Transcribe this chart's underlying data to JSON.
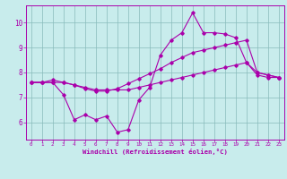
{
  "xlabel": "Windchill (Refroidissement éolien,°C)",
  "background_color": "#c8ecec",
  "line_color": "#aa00aa",
  "grid_color": "#aaccaa",
  "xlim": [
    -0.5,
    23.5
  ],
  "ylim": [
    5.3,
    10.7
  ],
  "yticks": [
    6,
    7,
    8,
    9,
    10
  ],
  "xticks": [
    0,
    1,
    2,
    3,
    4,
    5,
    6,
    7,
    8,
    9,
    10,
    11,
    12,
    13,
    14,
    15,
    16,
    17,
    18,
    19,
    20,
    21,
    22,
    23
  ],
  "line1_x": [
    0,
    1,
    2,
    3,
    4,
    5,
    6,
    7,
    8,
    9,
    10,
    11,
    12,
    13,
    14,
    15,
    16,
    17,
    18,
    19,
    20,
    21,
    22,
    23
  ],
  "line1_y": [
    7.6,
    7.6,
    7.6,
    7.1,
    6.1,
    6.3,
    6.1,
    6.25,
    5.6,
    5.7,
    6.9,
    7.4,
    8.7,
    9.3,
    9.6,
    10.4,
    9.6,
    9.6,
    9.55,
    9.4,
    8.4,
    7.9,
    7.8,
    7.8
  ],
  "line2_x": [
    0,
    1,
    2,
    3,
    4,
    5,
    6,
    7,
    8,
    9,
    10,
    11,
    12,
    13,
    14,
    15,
    16,
    17,
    18,
    19,
    20,
    21,
    22,
    23
  ],
  "line2_y": [
    7.6,
    7.6,
    7.7,
    7.6,
    7.5,
    7.35,
    7.25,
    7.25,
    7.35,
    7.55,
    7.75,
    7.95,
    8.15,
    8.4,
    8.6,
    8.8,
    8.9,
    9.0,
    9.1,
    9.2,
    9.3,
    8.0,
    7.9,
    7.8
  ],
  "line3_x": [
    0,
    1,
    2,
    3,
    4,
    5,
    6,
    7,
    8,
    9,
    10,
    11,
    12,
    13,
    14,
    15,
    16,
    17,
    18,
    19,
    20,
    21,
    22,
    23
  ],
  "line3_y": [
    7.6,
    7.6,
    7.6,
    7.6,
    7.5,
    7.4,
    7.3,
    7.3,
    7.3,
    7.3,
    7.4,
    7.5,
    7.6,
    7.7,
    7.8,
    7.9,
    8.0,
    8.1,
    8.2,
    8.3,
    8.4,
    8.0,
    7.9,
    7.8
  ]
}
